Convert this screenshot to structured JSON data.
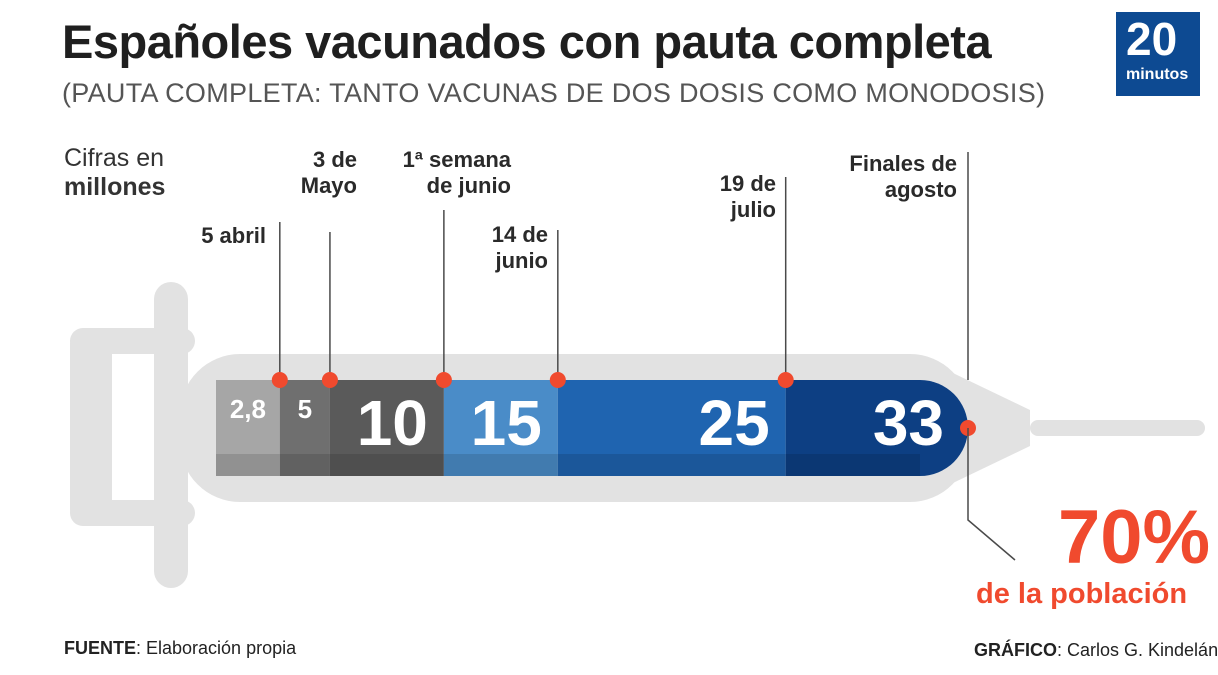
{
  "header": {
    "title": "Españoles vacunados con pauta completa",
    "subtitle": "(PAUTA COMPLETA: TANTO VACUNAS DE DOS DOSIS COMO MONODOSIS)"
  },
  "logo": {
    "number": "20",
    "word": "minutos"
  },
  "unit_note": {
    "line1": "Cifras en",
    "line2": "millones"
  },
  "callout": {
    "percent": "70%",
    "text": "de la población"
  },
  "footer": {
    "source_label": "FUENTE",
    "source_text": ": Elaboración propia",
    "credit_label": "GRÁFICO",
    "credit_text": ": Carlos G. Kindelán"
  },
  "colors": {
    "syringe": "#e2e2e2",
    "accent": "#f04a2e",
    "segments": [
      "#a6a6a6",
      "#6f6f6f",
      "#5a5a5a",
      "#4a8cc8",
      "#1f64b0",
      "#0d3f83"
    ]
  },
  "chart_data": {
    "type": "bar",
    "title": "Españoles vacunados con pauta completa",
    "unit": "millones",
    "categories": [
      "5 abril",
      "3 de Mayo",
      "1ª semana de junio",
      "14 de junio",
      "19 de julio",
      "Finales de agosto"
    ],
    "values": [
      2.8,
      5,
      10,
      15,
      25,
      33
    ],
    "value_labels": [
      "2,8",
      "5",
      "10",
      "15",
      "25",
      "33"
    ],
    "xlabel": "",
    "ylabel": "",
    "grid": false,
    "legend": "none"
  }
}
